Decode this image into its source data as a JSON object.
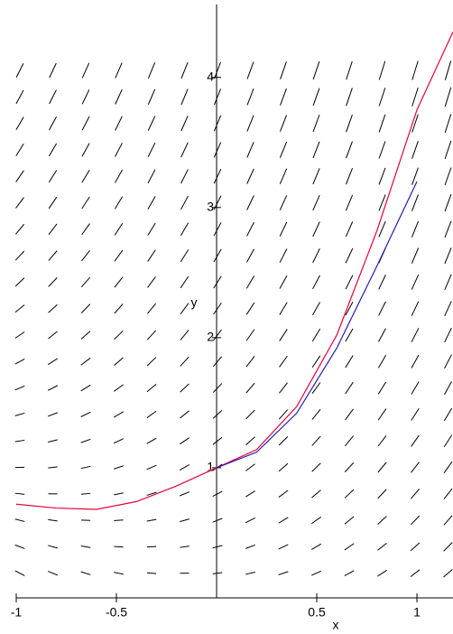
{
  "chart_data": {
    "type": "line",
    "x_label": "x",
    "y_label": "y",
    "xlim": [
      -1,
      1.18
    ],
    "ylim": [
      0,
      4.56
    ],
    "xticks": [
      -1,
      -0.5,
      0.5,
      1
    ],
    "yticks": [
      1,
      2,
      3,
      4
    ],
    "series": [
      {
        "color": "#e8003c",
        "x": [
          -1,
          -0.8,
          -0.6,
          -0.4,
          -0.2,
          0,
          0.2,
          0.4,
          0.6,
          0.8,
          1,
          1.18
        ],
        "values": [
          0.72,
          0.69,
          0.68,
          0.74,
          0.86,
          1,
          1.14,
          1.47,
          2.02,
          2.82,
          3.75,
          4.35
        ]
      },
      {
        "color": "#2a1ab0",
        "x": [
          0,
          0.2,
          0.4,
          0.6,
          0.8,
          1
        ],
        "values": [
          1,
          1.12,
          1.42,
          1.92,
          2.55,
          3.2
        ]
      }
    ]
  }
}
